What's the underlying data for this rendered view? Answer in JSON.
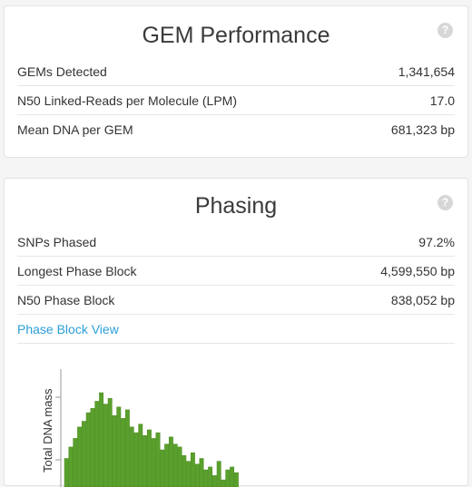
{
  "gem_performance": {
    "title": "GEM Performance",
    "help": "?",
    "rows": [
      {
        "label": "GEMs Detected",
        "value": "1,341,654"
      },
      {
        "label": "N50 Linked-Reads per Molecule (LPM)",
        "value": "17.0"
      },
      {
        "label": "Mean DNA per GEM",
        "value": "681,323 bp"
      }
    ]
  },
  "phasing": {
    "title": "Phasing",
    "help": "?",
    "rows": [
      {
        "label": "SNPs Phased",
        "value": "97.2%"
      },
      {
        "label": "Longest Phase Block",
        "value": "4,599,550 bp"
      },
      {
        "label": "N50 Phase Block",
        "value": "838,052 bp"
      }
    ],
    "link_label": "Phase Block View"
  },
  "chart_data": {
    "type": "bar",
    "ylabel": "Total DNA mass",
    "bar_color": "#5aa02c",
    "values": [
      20,
      28,
      34,
      42,
      46,
      52,
      55,
      60,
      66,
      58,
      62,
      50,
      56,
      48,
      54,
      42,
      38,
      44,
      36,
      40,
      34,
      38,
      26,
      30,
      35,
      30,
      28,
      22,
      18,
      24,
      16,
      20,
      12,
      14,
      8,
      18,
      5,
      12,
      14,
      10
    ]
  }
}
